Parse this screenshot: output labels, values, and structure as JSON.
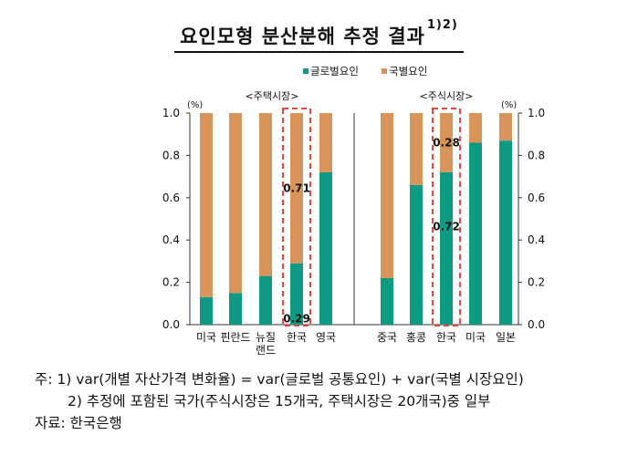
{
  "title": "요인모형 분산분해 추정 결과",
  "title_sup": "1)2)",
  "legend": [
    {
      "label": "글로벌요인",
      "color": "#0f9b83"
    },
    {
      "label": "국별요인",
      "color": "#d9945a"
    }
  ],
  "chart_data": {
    "type": "bar",
    "stacked": true,
    "ylim": [
      0,
      1.0
    ],
    "yticks": [
      "0.0",
      "0.2",
      "0.4",
      "0.6",
      "0.8",
      "1.0"
    ],
    "yunit_left": "(%)",
    "yunit_right": "(%)",
    "panels": [
      {
        "title": "<주택시장>",
        "categories": [
          "미국",
          "핀란드",
          "뉴질\n랜드",
          "한국",
          "영국"
        ],
        "series": [
          {
            "name": "글로벌요인",
            "color": "#0f9b83",
            "values": [
              0.13,
              0.15,
              0.23,
              0.29,
              0.72
            ]
          },
          {
            "name": "국별요인",
            "color": "#d9945a",
            "values": [
              0.87,
              0.85,
              0.77,
              0.71,
              0.28
            ]
          }
        ],
        "highlight_index": 3,
        "data_labels": [
          {
            "index": 3,
            "value": "0.71"
          },
          {
            "index": 3,
            "value": "0.29"
          }
        ]
      },
      {
        "title": "<주식시장>",
        "categories": [
          "중국",
          "홍콩",
          "한국",
          "미국",
          "일본"
        ],
        "series": [
          {
            "name": "글로벌요인",
            "color": "#0f9b83",
            "values": [
              0.22,
              0.66,
              0.72,
              0.86,
              0.87
            ]
          },
          {
            "name": "국별요인",
            "color": "#d9945a",
            "values": [
              0.78,
              0.34,
              0.28,
              0.14,
              0.13
            ]
          }
        ],
        "highlight_index": 2,
        "data_labels": [
          {
            "index": 2,
            "value": "0.28"
          },
          {
            "index": 2,
            "value": "0.72"
          }
        ]
      }
    ]
  },
  "notes": {
    "line1": "주: 1) var(개별 자산가격 변화율) = var(글로벌 공통요인) + var(국별 시장요인)",
    "line2": "2) 추정에 포함된 국가(주식시장은 15개국, 주택시장은 20개국)중 일부",
    "line3": "자료: 한국은행"
  }
}
